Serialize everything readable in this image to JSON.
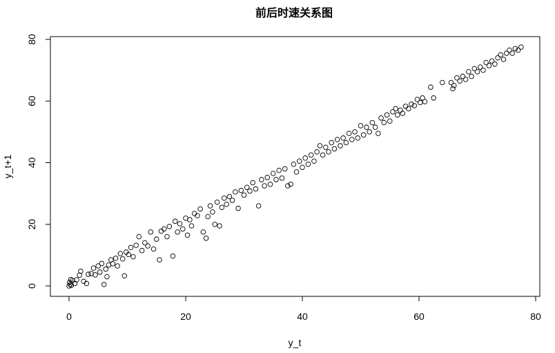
{
  "chart_data": {
    "type": "scatter",
    "title": "前后时速关系图",
    "xlabel": "y_t",
    "ylabel": "y_t+1",
    "xlim": [
      -3,
      81
    ],
    "ylim": [
      -3,
      82
    ],
    "xticks": [
      0,
      20,
      40,
      60,
      80
    ],
    "yticks": [
      0,
      20,
      40,
      60,
      80
    ],
    "grid": false,
    "marker": "open-circle",
    "points": [
      [
        0,
        0
      ],
      [
        0.2,
        0.5
      ],
      [
        0.1,
        1.2
      ],
      [
        0.4,
        0.2
      ],
      [
        0.6,
        1.8
      ],
      [
        0.3,
        2.1
      ],
      [
        1,
        0.8
      ],
      [
        1.3,
        2
      ],
      [
        1.8,
        3.5
      ],
      [
        2,
        4.8
      ],
      [
        2.5,
        1.5
      ],
      [
        3,
        0.8
      ],
      [
        3.3,
        3.8
      ],
      [
        3.8,
        4
      ],
      [
        4.2,
        5.8
      ],
      [
        4.5,
        3.6
      ],
      [
        5,
        6.5
      ],
      [
        5.3,
        4.5
      ],
      [
        5.6,
        7.3
      ],
      [
        6,
        0.5
      ],
      [
        6.3,
        5.5
      ],
      [
        6.5,
        3
      ],
      [
        6.8,
        6.8
      ],
      [
        7.2,
        8.5
      ],
      [
        7.5,
        7.2
      ],
      [
        8,
        9
      ],
      [
        8.3,
        6.5
      ],
      [
        8.8,
        10.5
      ],
      [
        9.2,
        8.8
      ],
      [
        9.5,
        3.3
      ],
      [
        9.8,
        11
      ],
      [
        10.2,
        10.2
      ],
      [
        10.6,
        12.5
      ],
      [
        11,
        9.5
      ],
      [
        11.5,
        13.2
      ],
      [
        12,
        16
      ],
      [
        12.5,
        11.5
      ],
      [
        13,
        14
      ],
      [
        13.5,
        13
      ],
      [
        14,
        17.5
      ],
      [
        14.5,
        12
      ],
      [
        15,
        15.2
      ],
      [
        15.5,
        8.5
      ],
      [
        15.8,
        17.8
      ],
      [
        16.3,
        18.5
      ],
      [
        16.8,
        16
      ],
      [
        17.2,
        19.3
      ],
      [
        17.8,
        9.7
      ],
      [
        18.2,
        21
      ],
      [
        18.6,
        17.5
      ],
      [
        19,
        20.2
      ],
      [
        19.5,
        18.5
      ],
      [
        20,
        22
      ],
      [
        20.3,
        16.5
      ],
      [
        20.7,
        21.5
      ],
      [
        21,
        19.5
      ],
      [
        21.5,
        23.5
      ],
      [
        22,
        22.8
      ],
      [
        22.5,
        25
      ],
      [
        23,
        17.5
      ],
      [
        23.5,
        15.5
      ],
      [
        23.8,
        22.5
      ],
      [
        24.2,
        26
      ],
      [
        24.6,
        24
      ],
      [
        25,
        20
      ],
      [
        25.4,
        27.2
      ],
      [
        25.8,
        19.5
      ],
      [
        26.2,
        25.5
      ],
      [
        26.6,
        28.5
      ],
      [
        27,
        26.5
      ],
      [
        27.5,
        29
      ],
      [
        28,
        27.8
      ],
      [
        28.5,
        30.5
      ],
      [
        29,
        25.2
      ],
      [
        29.5,
        31
      ],
      [
        30,
        29.5
      ],
      [
        30.5,
        32
      ],
      [
        31,
        30.8
      ],
      [
        31.5,
        33.5
      ],
      [
        32,
        31.5
      ],
      [
        32.5,
        26
      ],
      [
        33,
        34.5
      ],
      [
        33.5,
        32.5
      ],
      [
        34,
        35.2
      ],
      [
        34.5,
        33
      ],
      [
        35,
        36.5
      ],
      [
        35.5,
        34.5
      ],
      [
        36,
        37.5
      ],
      [
        36.5,
        35
      ],
      [
        37,
        38
      ],
      [
        37.5,
        32.5
      ],
      [
        38,
        33
      ],
      [
        38.5,
        39.5
      ],
      [
        39,
        37
      ],
      [
        39.5,
        40.5
      ],
      [
        40,
        38.5
      ],
      [
        40.5,
        41.5
      ],
      [
        41,
        39.5
      ],
      [
        41.5,
        42.5
      ],
      [
        42,
        40.5
      ],
      [
        42.5,
        43.5
      ],
      [
        43,
        45.5
      ],
      [
        43.5,
        42.5
      ],
      [
        44,
        45
      ],
      [
        44.5,
        43.5
      ],
      [
        45,
        46.5
      ],
      [
        45.5,
        44.5
      ],
      [
        46,
        47.5
      ],
      [
        46.5,
        45.5
      ],
      [
        47,
        48
      ],
      [
        47.5,
        46.5
      ],
      [
        48,
        49.5
      ],
      [
        48.5,
        47.5
      ],
      [
        49,
        50
      ],
      [
        49.5,
        48
      ],
      [
        50,
        52
      ],
      [
        50.5,
        49
      ],
      [
        51,
        51.5
      ],
      [
        51.5,
        50
      ],
      [
        52,
        53
      ],
      [
        52.5,
        51.5
      ],
      [
        53,
        49.5
      ],
      [
        53.5,
        54.5
      ],
      [
        54,
        53
      ],
      [
        54.5,
        55.5
      ],
      [
        55,
        53.5
      ],
      [
        55.5,
        56.5
      ],
      [
        56,
        57.5
      ],
      [
        56.3,
        55.5
      ],
      [
        56.8,
        57
      ],
      [
        57.2,
        56
      ],
      [
        57.7,
        58.3
      ],
      [
        58.2,
        57.5
      ],
      [
        58.7,
        59
      ],
      [
        59.2,
        58.5
      ],
      [
        59.7,
        60.5
      ],
      [
        60.2,
        59.5
      ],
      [
        60.6,
        61
      ],
      [
        61,
        59.8
      ],
      [
        62,
        64.5
      ],
      [
        62.5,
        61
      ],
      [
        64,
        66
      ],
      [
        65.5,
        66
      ],
      [
        65.8,
        64
      ],
      [
        66,
        65
      ],
      [
        66.5,
        67.5
      ],
      [
        67,
        66.5
      ],
      [
        67.5,
        68
      ],
      [
        68,
        67
      ],
      [
        68.5,
        69.5
      ],
      [
        69,
        68
      ],
      [
        69.5,
        70.5
      ],
      [
        70,
        69.5
      ],
      [
        70.5,
        71
      ],
      [
        71,
        70
      ],
      [
        71.5,
        72.5
      ],
      [
        72,
        71.5
      ],
      [
        72.5,
        73
      ],
      [
        73,
        72
      ],
      [
        73.5,
        74
      ],
      [
        74,
        75
      ],
      [
        74.5,
        73.5
      ],
      [
        75,
        75.5
      ],
      [
        75.5,
        76.5
      ],
      [
        76,
        75.5
      ],
      [
        76.5,
        77
      ],
      [
        77,
        76.5
      ],
      [
        77.5,
        77.5
      ]
    ]
  }
}
